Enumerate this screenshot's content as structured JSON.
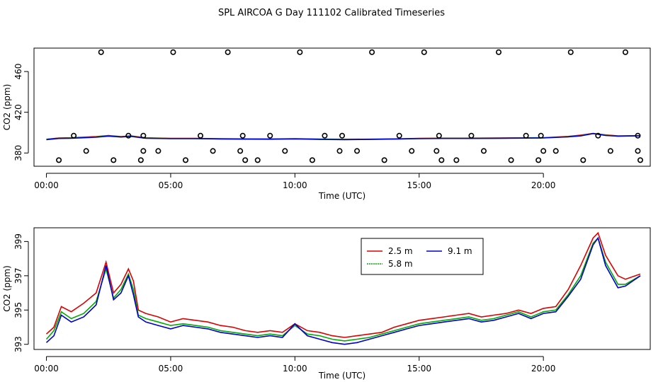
{
  "title": "SPL AIRCOA G  Day 111102  Calibrated Timeseries",
  "chart_data": [
    {
      "type": "line",
      "title": "SPL AIRCOA G  Day 111102  Calibrated Timeseries",
      "xlabel": "Time (UTC)",
      "ylabel": "CO2 (ppm)",
      "xlim": [
        -0.5,
        24.3
      ],
      "ylim": [
        367,
        483
      ],
      "xticks": [
        0,
        5,
        10,
        15,
        20
      ],
      "xtick_labels": [
        "00:00",
        "05:00",
        "10:00",
        "15:00",
        "20:00"
      ],
      "yticks": [
        380,
        420,
        460
      ],
      "ytick_labels": [
        "380",
        "420",
        "460"
      ],
      "series": [
        {
          "name": "2.5 m",
          "color": "#dd0000",
          "x": [
            0,
            0.5,
            1,
            2,
            2.5,
            3,
            3.4,
            4,
            5,
            6,
            7,
            8,
            9,
            10,
            11,
            12,
            13,
            14,
            15,
            16,
            17,
            18,
            19,
            20,
            21,
            21.5,
            22,
            22.5,
            23,
            23.9
          ],
          "y": [
            393.5,
            394.7,
            395,
            396.2,
            397.2,
            396.2,
            396.8,
            394.9,
            394.4,
            394.4,
            394.1,
            393.9,
            393.8,
            394.1,
            393.7,
            393.5,
            393.6,
            393.9,
            394.4,
            394.6,
            394.6,
            394.7,
            394.9,
            395,
            396.3,
            397.5,
            399.3,
            397.8,
            396.8,
            397
          ]
        },
        {
          "name": "5.8 m",
          "color": "#00aa00",
          "x": [
            0,
            0.5,
            1,
            2,
            2.5,
            3,
            3.4,
            4,
            5,
            6,
            7,
            8,
            9,
            10,
            11,
            12,
            13,
            14,
            15,
            16,
            17,
            18,
            19,
            20,
            21,
            21.5,
            22,
            22.5,
            23,
            23.9
          ],
          "y": [
            393.3,
            394.5,
            394.8,
            395.8,
            396.9,
            395.9,
            396.5,
            394.7,
            394.2,
            394.2,
            393.9,
            393.7,
            393.6,
            393.9,
            393.5,
            393.3,
            393.4,
            393.8,
            394.2,
            394.4,
            394.4,
            394.5,
            394.7,
            394.9,
            396,
            397,
            399.1,
            397.4,
            396.6,
            397
          ]
        },
        {
          "name": "9.1 m",
          "color": "#0000cc",
          "x": [
            0,
            0.5,
            1,
            2,
            2.5,
            3,
            3.4,
            4,
            5,
            6,
            7,
            8,
            9,
            10,
            11,
            12,
            13,
            14,
            15,
            16,
            17,
            18,
            19,
            20,
            21,
            21.5,
            22,
            22.5,
            23,
            23.9
          ],
          "y": [
            393.1,
            394.3,
            394.5,
            395.5,
            396.6,
            395.7,
            396.3,
            394.5,
            394.1,
            394.1,
            393.8,
            393.6,
            393.5,
            393.9,
            393.3,
            393.1,
            393.3,
            393.7,
            394.1,
            394.3,
            394.3,
            394.4,
            394.6,
            394.8,
            395.8,
            396.8,
            399.1,
            397.2,
            396.5,
            396.9
          ]
        }
      ],
      "scatter": {
        "name": "individual samples",
        "x": [
          0.5,
          1.1,
          1.6,
          2.2,
          2.7,
          3.3,
          3.8,
          3.9,
          3.9,
          4.5,
          5.1,
          5.6,
          6.2,
          6.7,
          7.3,
          7.8,
          7.9,
          8.0,
          8.5,
          9.0,
          9.6,
          10.2,
          10.7,
          11.2,
          11.8,
          11.9,
          12.5,
          13.1,
          13.6,
          14.2,
          14.7,
          15.2,
          15.7,
          15.8,
          15.9,
          16.5,
          17.1,
          17.6,
          18.2,
          18.7,
          19.3,
          19.8,
          19.9,
          20.0,
          20.5,
          21.1,
          21.6,
          22.2,
          22.7,
          23.3,
          23.8,
          23.8,
          23.9
        ],
        "y": [
          373,
          397,
          382,
          479,
          373,
          397,
          373,
          397,
          382,
          382,
          479,
          373,
          397,
          382,
          479,
          382,
          397,
          373,
          373,
          397,
          382,
          479,
          373,
          397,
          382,
          397,
          382,
          479,
          373,
          397,
          382,
          479,
          382,
          397,
          373,
          373,
          397,
          382,
          479,
          373,
          397,
          373,
          397,
          382,
          382,
          479,
          373,
          397,
          382,
          479,
          382,
          397,
          373
        ]
      }
    },
    {
      "type": "line",
      "title": "",
      "xlabel": "Time (UTC)",
      "ylabel": "CO2 (ppm)",
      "xlim": [
        -0.5,
        24.3
      ],
      "ylim": [
        392.7,
        399.8
      ],
      "xticks": [
        0,
        5,
        10,
        15,
        20
      ],
      "xtick_labels": [
        "00:00",
        "05:00",
        "10:00",
        "15:00",
        "20:00"
      ],
      "yticks": [
        393,
        395,
        397,
        399
      ],
      "ytick_labels": [
        "393",
        "395",
        "397",
        "399"
      ],
      "legend": {
        "placement": "top-center",
        "entries": [
          "2.5 m",
          "9.1 m",
          "5.8 m"
        ]
      },
      "series": [
        {
          "name": "2.5 m",
          "color": "#dd0000",
          "x": [
            0,
            0.3,
            0.6,
            1,
            1.5,
            2,
            2.4,
            2.7,
            3,
            3.3,
            3.5,
            3.7,
            4,
            4.5,
            5,
            5.5,
            6,
            6.5,
            7,
            7.5,
            8,
            8.5,
            9,
            9.5,
            10,
            10.5,
            11,
            11.5,
            12,
            12.5,
            13,
            13.5,
            14,
            14.5,
            15,
            15.5,
            16,
            16.5,
            17,
            17.5,
            18,
            18.5,
            19,
            19.5,
            20,
            20.5,
            21,
            21.5,
            22,
            22.2,
            22.5,
            23,
            23.3,
            23.9
          ],
          "y": [
            393.6,
            394,
            395.2,
            394.9,
            395.4,
            396,
            397.8,
            396,
            396.5,
            397.4,
            396.7,
            395,
            394.8,
            394.6,
            394.3,
            394.5,
            394.4,
            394.3,
            394.1,
            394,
            393.8,
            393.7,
            393.8,
            393.7,
            394.2,
            393.8,
            393.7,
            393.5,
            393.4,
            393.5,
            393.6,
            393.7,
            394,
            394.2,
            394.4,
            394.5,
            394.6,
            394.7,
            394.8,
            394.6,
            394.7,
            394.8,
            395,
            394.8,
            395.1,
            395.2,
            396.2,
            397.6,
            399.2,
            399.5,
            398.2,
            397,
            396.8,
            397.1
          ]
        },
        {
          "name": "5.8 m",
          "color": "#00aa00",
          "x": [
            0,
            0.3,
            0.6,
            1,
            1.5,
            2,
            2.4,
            2.7,
            3,
            3.3,
            3.5,
            3.7,
            4,
            4.5,
            5,
            5.5,
            6,
            6.5,
            7,
            7.5,
            8,
            8.5,
            9,
            9.5,
            10,
            10.5,
            11,
            11.5,
            12,
            12.5,
            13,
            13.5,
            14,
            14.5,
            15,
            15.5,
            16,
            16.5,
            17,
            17.5,
            18,
            18.5,
            19,
            19.5,
            20,
            20.5,
            21,
            21.5,
            22,
            22.2,
            22.5,
            23,
            23.3,
            23.9
          ],
          "y": [
            393.3,
            393.8,
            394.9,
            394.5,
            394.8,
            395.5,
            397.4,
            395.7,
            396.2,
            397.1,
            396.2,
            394.7,
            394.5,
            394.3,
            394.1,
            394.2,
            394.1,
            394,
            393.8,
            393.7,
            393.6,
            393.5,
            393.6,
            393.5,
            394.1,
            393.6,
            393.5,
            393.3,
            393.2,
            393.3,
            393.4,
            393.6,
            393.8,
            394,
            394.2,
            394.3,
            394.4,
            394.5,
            394.6,
            394.4,
            394.5,
            394.7,
            394.9,
            394.6,
            394.9,
            395,
            395.9,
            397,
            398.9,
            399.2,
            397.8,
            396.5,
            396.5,
            397
          ]
        },
        {
          "name": "9.1 m",
          "color": "#0000cc",
          "x": [
            0,
            0.3,
            0.6,
            1,
            1.5,
            2,
            2.4,
            2.7,
            3,
            3.3,
            3.5,
            3.7,
            4,
            4.5,
            5,
            5.5,
            6,
            6.5,
            7,
            7.5,
            8,
            8.5,
            9,
            9.5,
            10,
            10.5,
            11,
            11.5,
            12,
            12.5,
            13,
            13.5,
            14,
            14.5,
            15,
            15.5,
            16,
            16.5,
            17,
            17.5,
            18,
            18.5,
            19,
            19.5,
            20,
            20.5,
            21,
            21.5,
            22,
            22.2,
            22.5,
            23,
            23.3,
            23.9
          ],
          "y": [
            393.1,
            393.5,
            394.7,
            394.3,
            394.6,
            395.3,
            397.6,
            395.6,
            396,
            397,
            395.9,
            394.6,
            394.3,
            394.1,
            393.9,
            394.1,
            394,
            393.9,
            393.7,
            393.6,
            393.5,
            393.4,
            393.5,
            393.4,
            394.2,
            393.5,
            393.3,
            393.1,
            393,
            393.1,
            393.3,
            393.5,
            393.7,
            393.9,
            394.1,
            394.2,
            394.3,
            394.4,
            394.5,
            394.3,
            394.4,
            394.6,
            394.8,
            394.5,
            394.8,
            394.9,
            395.8,
            396.8,
            398.8,
            399.2,
            397.6,
            396.3,
            396.4,
            397
          ]
        }
      ]
    }
  ]
}
